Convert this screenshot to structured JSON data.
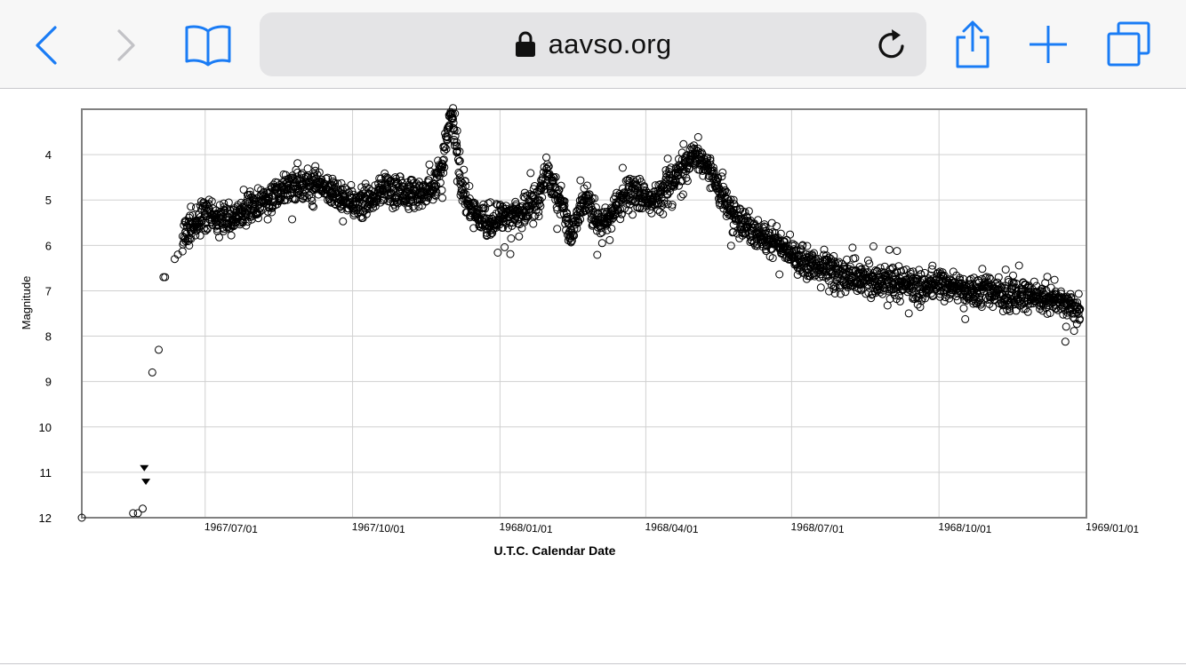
{
  "browser": {
    "url_text": "aavso.org",
    "icons": {
      "back": "chevron-left-icon",
      "forward": "chevron-right-icon",
      "bookmarks": "book-icon",
      "lock": "lock-icon",
      "reload": "reload-icon",
      "share": "share-icon",
      "new_tab": "plus-icon",
      "tabs": "tabs-icon"
    },
    "accent_color": "#1a7cf5",
    "disabled_color": "#c2c2c6"
  },
  "chart_data": {
    "type": "scatter",
    "title": "",
    "xlabel": "U.T.C. Calendar Date",
    "ylabel": "Magnitude",
    "y_inverted": true,
    "ylim": [
      3.0,
      12.0
    ],
    "xlim": [
      "1967-04-15",
      "1969-01-01"
    ],
    "y_ticks": [
      "4",
      "5",
      "6",
      "7",
      "8",
      "9",
      "10",
      "11",
      "12"
    ],
    "x_ticks": [
      "1967/07/01",
      "1967/10/01",
      "1968/01/01",
      "1968/04/01",
      "1968/07/01",
      "1968/10/01",
      "1969/01/01"
    ],
    "grid": true,
    "marker": "open-circle",
    "series": [
      {
        "kind": "observations",
        "points": [
          [
            "1967-04-15",
            12.0
          ],
          [
            "1967-05-17",
            11.9
          ],
          [
            "1967-05-20",
            11.9
          ],
          [
            "1967-05-23",
            11.8
          ],
          [
            "1967-05-29",
            8.8
          ],
          [
            "1967-06-02",
            8.3
          ],
          [
            "1967-06-05",
            6.7
          ],
          [
            "1967-06-06",
            6.7
          ],
          [
            "1967-06-12",
            6.3
          ],
          [
            "1967-06-14",
            6.2
          ],
          [
            "1967-06-17",
            5.8
          ],
          [
            "1967-06-22",
            5.6
          ],
          [
            "1967-06-26",
            5.5
          ],
          [
            "1967-07-01",
            5.3
          ],
          [
            "1967-07-08",
            5.4
          ],
          [
            "1967-07-16",
            5.5
          ],
          [
            "1967-07-24",
            5.3
          ],
          [
            "1967-08-01",
            5.1
          ],
          [
            "1967-08-09",
            5.0
          ],
          [
            "1967-08-17",
            4.8
          ],
          [
            "1967-08-25",
            4.7
          ],
          [
            "1967-09-02",
            4.6
          ],
          [
            "1967-09-10",
            4.6
          ],
          [
            "1967-09-18",
            4.8
          ],
          [
            "1967-09-26",
            5.0
          ],
          [
            "1967-10-04",
            5.1
          ],
          [
            "1967-10-12",
            5.0
          ],
          [
            "1967-10-20",
            4.8
          ],
          [
            "1967-10-28",
            4.8
          ],
          [
            "1967-11-05",
            4.9
          ],
          [
            "1967-11-13",
            4.9
          ],
          [
            "1967-11-21",
            4.7
          ],
          [
            "1967-11-26",
            4.2
          ],
          [
            "1967-11-29",
            3.6
          ],
          [
            "1967-12-01",
            3.1
          ],
          [
            "1967-12-03",
            3.3
          ],
          [
            "1967-12-05",
            3.8
          ],
          [
            "1967-12-08",
            4.6
          ],
          [
            "1967-12-12",
            5.1
          ],
          [
            "1967-12-18",
            5.4
          ],
          [
            "1967-12-26",
            5.5
          ],
          [
            "1968-01-03",
            5.4
          ],
          [
            "1968-01-11",
            5.3
          ],
          [
            "1968-01-19",
            5.2
          ],
          [
            "1968-01-25",
            5.0
          ],
          [
            "1968-01-30",
            4.4
          ],
          [
            "1968-02-03",
            4.7
          ],
          [
            "1968-02-08",
            5.0
          ],
          [
            "1968-02-14",
            5.8
          ],
          [
            "1968-02-19",
            5.2
          ],
          [
            "1968-02-25",
            4.9
          ],
          [
            "1968-03-02",
            5.6
          ],
          [
            "1968-03-08",
            5.4
          ],
          [
            "1968-03-14",
            5.1
          ],
          [
            "1968-03-20",
            4.9
          ],
          [
            "1968-03-28",
            4.9
          ],
          [
            "1968-04-05",
            5.0
          ],
          [
            "1968-04-13",
            4.8
          ],
          [
            "1968-04-21",
            4.4
          ],
          [
            "1968-04-29",
            4.1
          ],
          [
            "1968-05-04",
            4.0
          ],
          [
            "1968-05-10",
            4.3
          ],
          [
            "1968-05-18",
            4.9
          ],
          [
            "1968-05-26",
            5.3
          ],
          [
            "1968-06-03",
            5.6
          ],
          [
            "1968-06-11",
            5.8
          ],
          [
            "1968-06-19",
            5.9
          ],
          [
            "1968-06-27",
            6.1
          ],
          [
            "1968-07-05",
            6.3
          ],
          [
            "1968-07-13",
            6.4
          ],
          [
            "1968-07-21",
            6.5
          ],
          [
            "1968-07-29",
            6.6
          ],
          [
            "1968-08-06",
            6.7
          ],
          [
            "1968-08-14",
            6.7
          ],
          [
            "1968-08-22",
            6.8
          ],
          [
            "1968-08-30",
            6.8
          ],
          [
            "1968-09-07",
            6.8
          ],
          [
            "1968-09-15",
            6.9
          ],
          [
            "1968-09-23",
            6.9
          ],
          [
            "1968-10-01",
            6.9
          ],
          [
            "1968-10-09",
            6.9
          ],
          [
            "1968-10-17",
            7.0
          ],
          [
            "1968-10-25",
            7.0
          ],
          [
            "1968-11-02",
            7.0
          ],
          [
            "1968-11-10",
            7.1
          ],
          [
            "1968-11-18",
            7.1
          ],
          [
            "1968-11-26",
            7.1
          ],
          [
            "1968-12-04",
            7.2
          ],
          [
            "1968-12-12",
            7.2
          ],
          [
            "1968-12-20",
            7.3
          ],
          [
            "1968-12-28",
            7.4
          ]
        ]
      },
      {
        "kind": "fainter-than limits",
        "marker": "filled-triangle-down",
        "points": [
          [
            "1967-05-24",
            10.9
          ],
          [
            "1967-05-25",
            11.2
          ]
        ]
      }
    ]
  }
}
